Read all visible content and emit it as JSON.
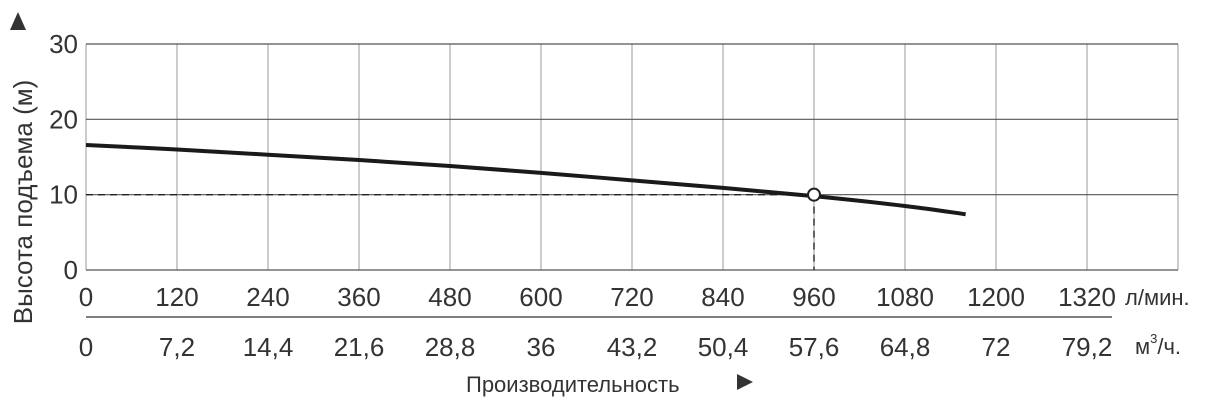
{
  "chart_data": {
    "type": "line",
    "ylabel": "Высота подъема (м)",
    "xlabel": "Производительность",
    "x_axis_primary": {
      "unit": "л/мин.",
      "ticks": [
        "0",
        "120",
        "240",
        "360",
        "480",
        "600",
        "720",
        "840",
        "960",
        "1080",
        "1200",
        "1320"
      ]
    },
    "x_axis_secondary": {
      "unit_base": "м",
      "unit_sup": "3",
      "unit_tail": "/ч.",
      "ticks": [
        "0",
        "7,2",
        "14,4",
        "21,6",
        "28,8",
        "36",
        "43,2",
        "50,4",
        "57,6",
        "64,8",
        "72",
        "79,2"
      ]
    },
    "y_ticks": [
      "0",
      "10",
      "20",
      "30"
    ],
    "xlim": [
      0,
      1440
    ],
    "ylim": [
      0,
      30
    ],
    "grid": true,
    "series": [
      {
        "x": [
          0,
          120,
          240,
          360,
          480,
          600,
          720,
          840,
          960,
          1080,
          1160
        ],
        "y": [
          16.6,
          16.0,
          15.3,
          14.6,
          13.8,
          12.9,
          11.9,
          10.9,
          9.8,
          8.5,
          7.4
        ]
      }
    ],
    "operating_point": {
      "x": 960,
      "y": 10
    }
  }
}
